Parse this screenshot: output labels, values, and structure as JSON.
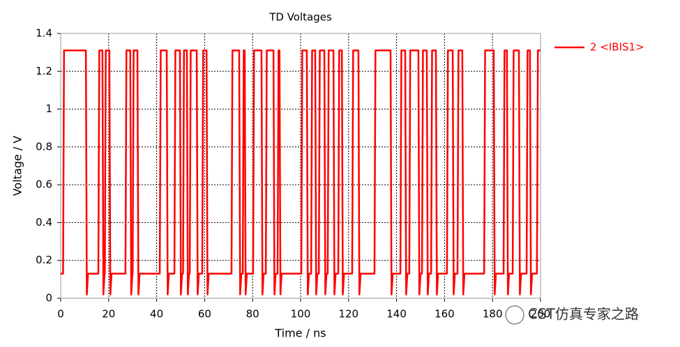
{
  "chart_data": {
    "type": "line",
    "title": "TD Voltages",
    "x_label": "Time / ns",
    "y_label": "Voltage / V",
    "xlim": [
      0,
      200
    ],
    "xticks": [
      0,
      20,
      40,
      60,
      80,
      100,
      120,
      140,
      160,
      180,
      200
    ],
    "ylim": [
      0,
      1.4
    ],
    "yticks": [
      0,
      0.2,
      0.4,
      0.6,
      0.8,
      1,
      1.2,
      1.4
    ],
    "grid": true,
    "x": [
      0,
      1,
      1.4,
      10.5,
      10.9,
      11.4,
      15.7,
      16.1,
      17.4,
      17.8,
      18.3,
      18.4,
      18.8,
      20.3,
      20.7,
      21.2,
      27,
      27.4,
      29,
      29.4,
      29.9,
      30,
      30.4,
      32,
      32.4,
      32.9,
      41.3,
      41.7,
      44.2,
      44.6,
      45.1,
      47.4,
      47.8,
      49.7,
      50.1,
      50.6,
      51,
      51.4,
      52.6,
      53,
      53.5,
      53.8,
      54.2,
      56.7,
      57.1,
      57.6,
      59,
      59.4,
      60.8,
      61.2,
      61.7,
      71.2,
      71.6,
      74.4,
      74.8,
      75.3,
      75.9,
      76.3,
      76.7,
      77.1,
      77.6,
      80.2,
      80.6,
      83.7,
      84.1,
      84.6,
      85.5,
      85.9,
      88.7,
      89.1,
      89.6,
      90.4,
      90.8,
      91.2,
      91.6,
      92.1,
      100.3,
      100.7,
      102.6,
      103,
      103.5,
      104.4,
      104.8,
      106.1,
      106.5,
      107,
      107.6,
      108,
      109.9,
      110.3,
      110.8,
      111.3,
      111.7,
      113.7,
      114.1,
      114.6,
      115.7,
      116.1,
      117.2,
      117.6,
      118.1,
      121.5,
      121.9,
      124.1,
      124.5,
      125,
      130.8,
      131.2,
      137.5,
      137.9,
      138.4,
      141.6,
      142,
      143.6,
      144,
      144.5,
      145.3,
      145.7,
      149.1,
      149.5,
      150,
      150.6,
      151,
      152.6,
      153,
      153.5,
      154.4,
      154.8,
      156.4,
      156.8,
      157.3,
      161,
      161.4,
      163.4,
      163.8,
      164.3,
      165.4,
      165.8,
      167.4,
      167.8,
      168.3,
      176.5,
      176.9,
      180.5,
      180.9,
      181.4,
      184.6,
      185,
      186,
      186.4,
      186.9,
      188.4,
      188.8,
      191,
      191.4,
      191.9,
      194.2,
      194.6,
      195.6,
      196,
      196.5,
      198.5,
      198.9,
      200
    ],
    "series": [
      {
        "name": "2 <IBIS1>",
        "color": "#ff0000",
        "values": [
          0.13,
          0.13,
          1.31,
          1.31,
          0.02,
          0.13,
          0.13,
          1.31,
          1.31,
          0.02,
          0.13,
          0.13,
          1.31,
          1.31,
          0.02,
          0.13,
          0.13,
          1.31,
          1.31,
          0.02,
          0.13,
          0.13,
          1.31,
          1.31,
          0.02,
          0.13,
          0.13,
          1.31,
          1.31,
          0.02,
          0.13,
          0.13,
          1.31,
          1.31,
          0.02,
          0.13,
          0.13,
          1.31,
          1.31,
          0.02,
          0.13,
          0.13,
          1.31,
          1.31,
          0.02,
          0.13,
          0.13,
          1.31,
          1.31,
          0.02,
          0.13,
          0.13,
          1.31,
          1.31,
          0.02,
          0.13,
          0.13,
          1.31,
          1.31,
          0.02,
          0.13,
          0.13,
          1.31,
          1.31,
          0.02,
          0.13,
          0.13,
          1.31,
          1.31,
          0.02,
          0.13,
          0.13,
          1.31,
          1.31,
          0.02,
          0.13,
          0.13,
          1.31,
          1.31,
          0.02,
          0.13,
          0.13,
          1.31,
          1.31,
          0.02,
          0.13,
          0.13,
          1.31,
          1.31,
          0.02,
          0.13,
          0.13,
          1.31,
          1.31,
          0.02,
          0.13,
          0.13,
          1.31,
          1.31,
          0.02,
          0.13,
          0.13,
          1.31,
          1.31,
          0.02,
          0.13,
          0.13,
          1.31,
          1.31,
          0.02,
          0.13,
          0.13,
          1.31,
          1.31,
          0.02,
          0.13,
          0.13,
          1.31,
          1.31,
          0.02,
          0.13,
          0.13,
          1.31,
          1.31,
          0.02,
          0.13,
          0.13,
          1.31,
          1.31,
          0.02,
          0.13,
          0.13,
          1.31,
          1.31,
          0.02,
          0.13,
          0.13,
          1.31,
          1.31,
          0.02,
          0.13,
          0.13,
          1.31,
          1.31,
          0.02,
          0.13,
          0.13,
          1.31,
          1.31,
          0.02,
          0.13,
          0.13,
          1.31,
          1.31,
          0.02,
          0.13,
          0.13,
          1.31,
          1.31,
          0.02,
          0.13,
          0.13,
          1.31,
          1.31
        ]
      }
    ],
    "legend": "right"
  },
  "watermark": "CST仿真专家之路"
}
